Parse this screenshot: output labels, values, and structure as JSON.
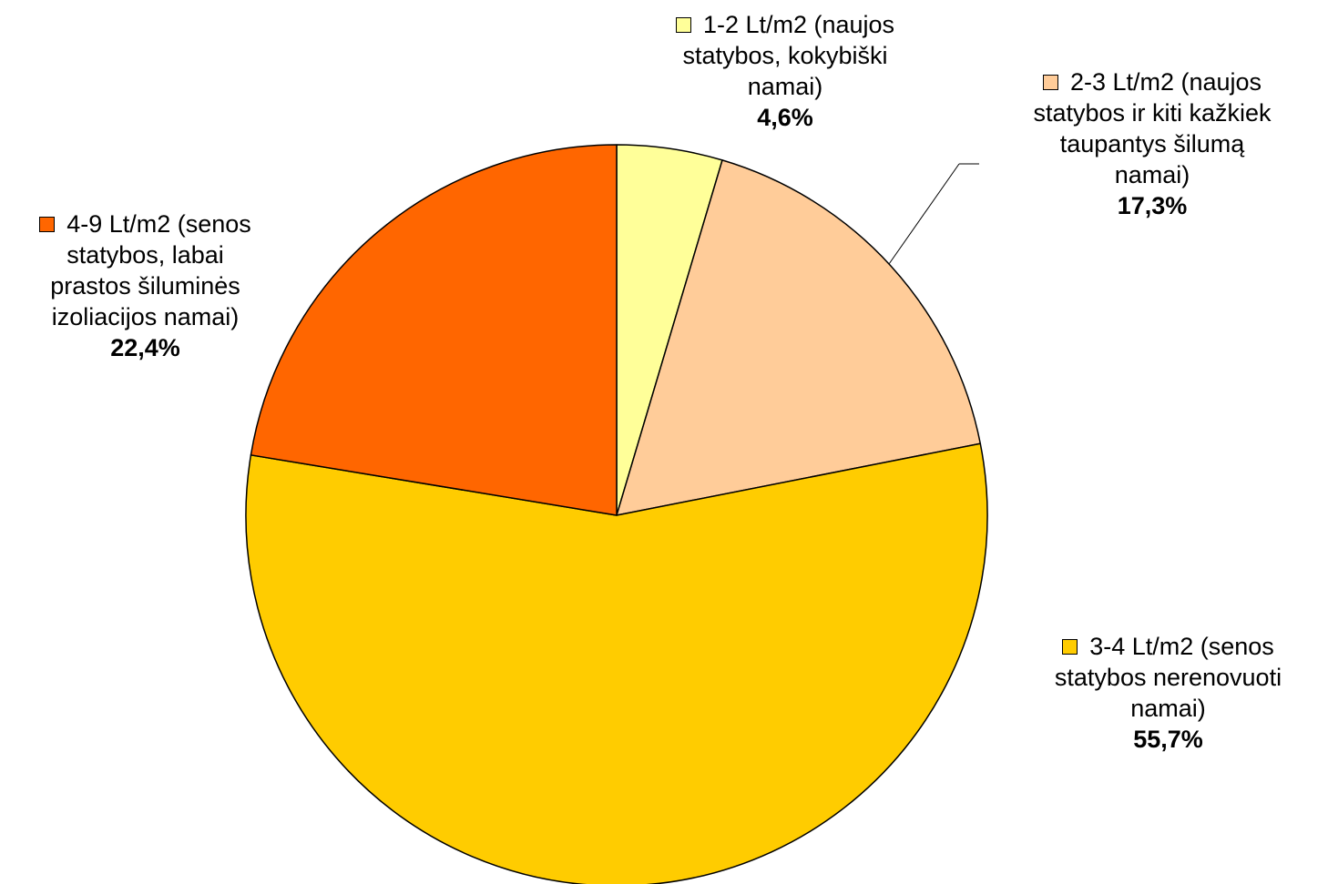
{
  "chart_data": {
    "type": "pie",
    "title": "",
    "start_angle_deg": 0,
    "direction": "clockwise",
    "slices": [
      {
        "label_lines": [
          "1-2 Lt/m2 (naujos",
          "statybos, kokybiški",
          "namai)"
        ],
        "value": 4.6,
        "value_label": "4,6%",
        "color": "#FFFF99"
      },
      {
        "label_lines": [
          "2-3 Lt/m2 (naujos",
          "statybos ir kiti kažkiek",
          "taupantys šilumą",
          "namai)"
        ],
        "value": 17.3,
        "value_label": "17,3%",
        "color": "#FFCC99"
      },
      {
        "label_lines": [
          "3-4 Lt/m2 (senos",
          "statybos nerenovuoti",
          "namai)"
        ],
        "value": 55.7,
        "value_label": "55,7%",
        "color": "#FFCC00"
      },
      {
        "label_lines": [
          "4-9 Lt/m2 (senos",
          "statybos, labai",
          "prastos šiluminės",
          "izoliacijos namai)"
        ],
        "value": 22.4,
        "value_label": "22,4%",
        "color": "#FF6600"
      }
    ]
  }
}
